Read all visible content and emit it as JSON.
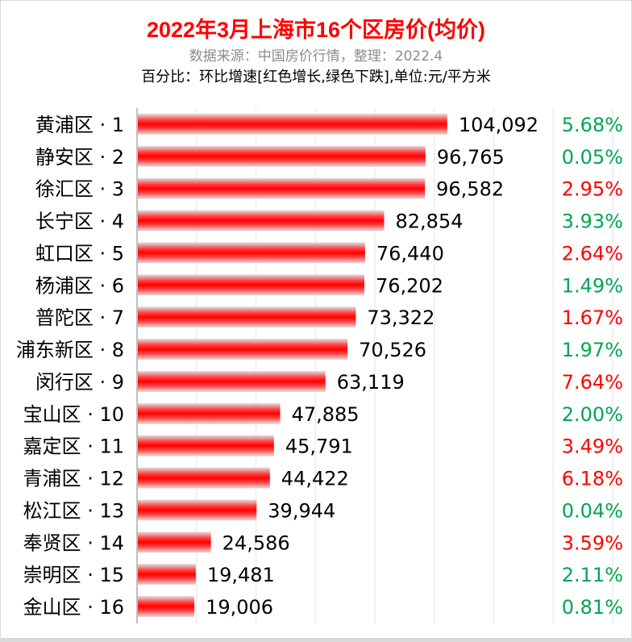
{
  "chart_data": {
    "type": "bar",
    "orientation": "horizontal",
    "title": "2022年3月上海市16个区房价(均价)",
    "subtitle": "数据来源：中国房价行情，整理：2022.4",
    "note": "百分比：环比增速[红色增长,绿色下跌],单位:元/平方米",
    "categories": [
      "黄浦区 · 1",
      "静安区 · 2",
      "徐汇区 · 3",
      "长宁区 · 4",
      "虹口区 · 5",
      "杨浦区 · 6",
      "普陀区 · 7",
      "浦东新区 · 8",
      "闵行区 · 9",
      "宝山区 · 10",
      "嘉定区 · 11",
      "青浦区 · 12",
      "松江区 · 13",
      "奉贤区 · 14",
      "崇明区 · 15",
      "金山区 · 16"
    ],
    "values": [
      104092,
      96765,
      96582,
      82854,
      76440,
      76202,
      73322,
      70526,
      63119,
      47885,
      45791,
      44422,
      39944,
      24586,
      19481,
      19006
    ],
    "value_labels": [
      "104,092",
      "96,765",
      "96,582",
      "82,854",
      "76,440",
      "76,202",
      "73,322",
      "70,526",
      "63,119",
      "47,885",
      "45,791",
      "44,422",
      "39,944",
      "24,586",
      "19,481",
      "19,006"
    ],
    "pct_change": [
      "5.68%",
      "0.05%",
      "2.95%",
      "3.93%",
      "2.64%",
      "1.49%",
      "1.67%",
      "1.97%",
      "7.64%",
      "2.00%",
      "3.49%",
      "6.18%",
      "0.04%",
      "3.59%",
      "2.11%",
      "0.81%"
    ],
    "pct_color": [
      "green",
      "green",
      "red",
      "green",
      "red",
      "green",
      "red",
      "green",
      "red",
      "green",
      "red",
      "red",
      "green",
      "red",
      "green",
      "green"
    ],
    "xlim": [
      0,
      160000
    ],
    "grid": true,
    "colors": {
      "bar": "#ff0000",
      "red": "#ff0000",
      "green": "#00a651",
      "title": "#ff0000"
    }
  }
}
